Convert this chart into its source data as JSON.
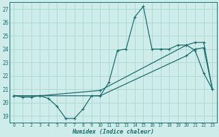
{
  "xlabel": "Humidex (Indice chaleur)",
  "bg_color": "#ceecea",
  "grid_color": "#aed8d4",
  "line_color": "#1a6b6b",
  "xlim": [
    -0.5,
    23.5
  ],
  "ylim": [
    18.5,
    27.5
  ],
  "xticks": [
    0,
    1,
    2,
    3,
    4,
    5,
    6,
    7,
    8,
    9,
    10,
    11,
    12,
    13,
    14,
    15,
    16,
    17,
    18,
    19,
    20,
    21,
    22,
    23
  ],
  "yticks": [
    19,
    20,
    21,
    22,
    23,
    24,
    25,
    26,
    27
  ],
  "s1_x": [
    0,
    1,
    2,
    3,
    4,
    5,
    6,
    7,
    8,
    9,
    10,
    11,
    12,
    13,
    14,
    15,
    16,
    17,
    18,
    19,
    20,
    21,
    22,
    23
  ],
  "s1_y": [
    20.5,
    20.4,
    20.4,
    20.5,
    20.3,
    19.7,
    18.8,
    18.8,
    19.5,
    20.5,
    20.5,
    21.5,
    23.9,
    24.0,
    26.4,
    27.2,
    24.0,
    24.0,
    24.0,
    24.3,
    24.3,
    23.9,
    22.2,
    21.0
  ],
  "s2_x": [
    0,
    3,
    10,
    20,
    21,
    22,
    23
  ],
  "s2_y": [
    20.5,
    20.5,
    20.9,
    24.3,
    24.5,
    24.5,
    21.0
  ],
  "s3_x": [
    0,
    3,
    10,
    20,
    21,
    22,
    23
  ],
  "s3_y": [
    20.5,
    20.5,
    20.5,
    23.5,
    24.0,
    24.1,
    21.0
  ]
}
